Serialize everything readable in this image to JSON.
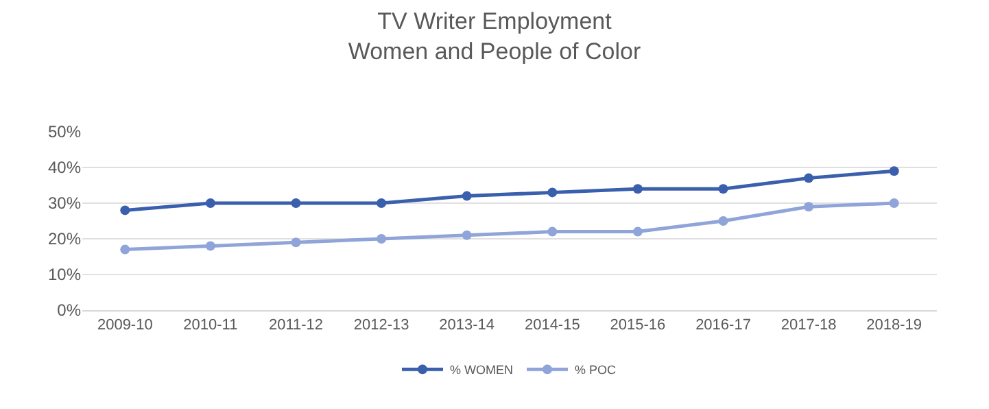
{
  "chart_data": {
    "type": "line",
    "title": "TV Writer Employment\nWomen and People of Color",
    "categories": [
      "2009-10",
      "2010-11",
      "2011-12",
      "2012-13",
      "2013-14",
      "2014-15",
      "2015-16",
      "2016-17",
      "2017-18",
      "2018-19"
    ],
    "series": [
      {
        "name": "% WOMEN",
        "color": "#3a5fad",
        "values": [
          28,
          30,
          30,
          30,
          32,
          33,
          34,
          34,
          37,
          39
        ]
      },
      {
        "name": "% POC",
        "color": "#8fa4d8",
        "values": [
          17,
          18,
          19,
          20,
          21,
          22,
          22,
          25,
          29,
          30
        ]
      }
    ],
    "ylim": [
      0,
      50
    ],
    "yticks": [
      {
        "value": 0,
        "label": "0%"
      },
      {
        "value": 10,
        "label": "10%"
      },
      {
        "value": 20,
        "label": "20%"
      },
      {
        "value": 30,
        "label": "30%"
      },
      {
        "value": 40,
        "label": "40%"
      },
      {
        "value": 50,
        "label": "50%"
      }
    ],
    "grid": "y",
    "legend": "bottom",
    "marker": "circle",
    "line_style": "solid"
  }
}
